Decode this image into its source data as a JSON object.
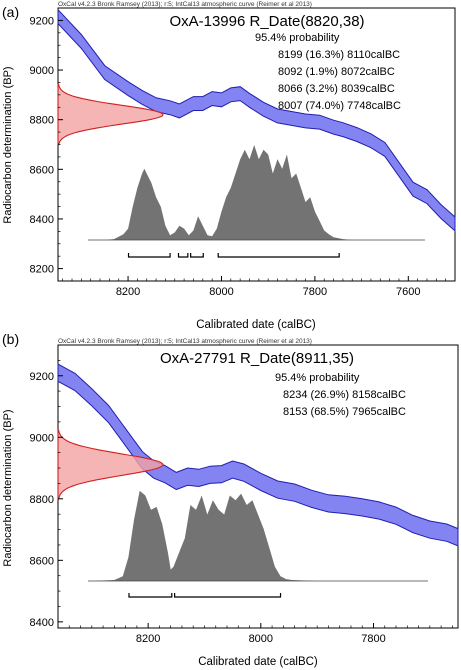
{
  "figure": {
    "panels": [
      {
        "panel_label": "(a)",
        "header": "OxCal v4.2.3 Bronk Ramsey (2013); r:5; IntCal13 atmospheric curve (Reimer et al 2013)",
        "title": "OxA-13996 R_Date(8820,38)",
        "probability_heading": "95.4% probability",
        "ranges": [
          "8199 (16.3%) 8110calBC",
          "8092 (1.9%) 8072calBC",
          "8066 (3.2%) 8039calBC",
          "8007 (74.0%) 7748calBC"
        ]
      },
      {
        "panel_label": "(b)",
        "header": "OxCal v4.2.3 Bronk Ramsey (2013); r:5; IntCal13 atmospheric curve (Reimer et al 2013)",
        "title": "OxA-27791 R_Date(8911,35)",
        "probability_heading": "95.4% probability",
        "ranges": [
          "8234 (26.9%) 8158calBC",
          "8153 (68.5%) 7965calBC"
        ]
      }
    ]
  },
  "colors": {
    "calibration_curve": "#5a5aee",
    "calibration_curve_edge": "#1f1fae",
    "radiocarbon_fill": "#f4a3a3",
    "radiocarbon_edge": "#d22020",
    "calibrated_fill": "#737373",
    "axis": "#000000"
  },
  "chart_data": [
    {
      "type": "area",
      "xlabel": "Calibrated date (calBC)",
      "ylabel": "Radiocarbon determination (BP)",
      "xlim": [
        8350,
        7500
      ],
      "ylim": [
        8150,
        9250
      ],
      "x_ticks": [
        8200,
        8000,
        7800,
        7600
      ],
      "y_ticks": [
        8200,
        8400,
        8600,
        8800,
        9000,
        9200
      ],
      "calibration_curve": {
        "x": [
          8350,
          8300,
          8250,
          8200,
          8170,
          8140,
          8110,
          8090,
          8060,
          8040,
          8020,
          8000,
          7980,
          7960,
          7940,
          7910,
          7880,
          7850,
          7820,
          7790,
          7760,
          7740,
          7710,
          7680,
          7650,
          7620,
          7590,
          7560,
          7530,
          7500
        ],
        "center": [
          9215,
          9115,
          8990,
          8925,
          8890,
          8860,
          8848,
          8835,
          8865,
          8865,
          8885,
          8880,
          8900,
          8905,
          8878,
          8842,
          8815,
          8805,
          8795,
          8790,
          8770,
          8760,
          8740,
          8715,
          8680,
          8600,
          8520,
          8490,
          8430,
          8380
        ],
        "half_width": 28
      },
      "radiocarbon_determination": {
        "mean_bp": 8820,
        "sd": 38
      },
      "calibrated_distribution": {
        "x": [
          8250,
          8230,
          8210,
          8200,
          8190,
          8180,
          8170,
          8165,
          8160,
          8150,
          8140,
          8130,
          8120,
          8110,
          8100,
          8090,
          8080,
          8070,
          8060,
          8050,
          8040,
          8030,
          8020,
          8010,
          8000,
          7990,
          7980,
          7970,
          7960,
          7950,
          7940,
          7930,
          7920,
          7910,
          7900,
          7890,
          7880,
          7870,
          7860,
          7850,
          7840,
          7830,
          7820,
          7810,
          7800,
          7790,
          7780,
          7770,
          7760,
          7750,
          7740,
          7720
        ],
        "density": [
          0,
          0.01,
          0.06,
          0.12,
          0.35,
          0.55,
          0.7,
          0.75,
          0.7,
          0.6,
          0.45,
          0.35,
          0.15,
          0.05,
          0.08,
          0.15,
          0.12,
          0.05,
          0.1,
          0.25,
          0.15,
          0.05,
          0.04,
          0.12,
          0.3,
          0.45,
          0.55,
          0.7,
          0.85,
          0.95,
          0.85,
          1.0,
          0.85,
          0.95,
          0.9,
          0.7,
          0.85,
          0.75,
          0.9,
          0.65,
          0.7,
          0.55,
          0.4,
          0.45,
          0.3,
          0.2,
          0.1,
          0.06,
          0.03,
          0.02,
          0.01,
          0
        ]
      },
      "ranges_95": [
        [
          8199,
          8110
        ],
        [
          8092,
          8072
        ],
        [
          8066,
          8039
        ],
        [
          8007,
          7748
        ]
      ]
    },
    {
      "type": "area",
      "xlabel": "Calibrated date (calBC)",
      "ylabel": "Radiocarbon determination (BP)",
      "xlim": [
        8360,
        7650
      ],
      "ylim": [
        8380,
        9300
      ],
      "x_ticks": [
        8200,
        8000,
        7800
      ],
      "y_ticks": [
        8400,
        8600,
        8800,
        9000,
        9200
      ],
      "calibration_curve": {
        "x": [
          8360,
          8330,
          8300,
          8270,
          8250,
          8230,
          8210,
          8190,
          8170,
          8150,
          8130,
          8110,
          8090,
          8070,
          8050,
          8030,
          8000,
          7970,
          7940,
          7910,
          7880,
          7850,
          7820,
          7790,
          7760,
          7730,
          7700,
          7670,
          7650
        ],
        "center": [
          9210,
          9180,
          9130,
          9075,
          9025,
          8975,
          8925,
          8895,
          8880,
          8858,
          8872,
          8868,
          8878,
          8880,
          8895,
          8885,
          8855,
          8830,
          8820,
          8800,
          8785,
          8780,
          8772,
          8762,
          8745,
          8718,
          8700,
          8690,
          8675
        ],
        "half_width": 28
      },
      "radiocarbon_determination": {
        "mean_bp": 8911,
        "sd": 35
      },
      "calibrated_distribution": {
        "x": [
          8300,
          8260,
          8245,
          8235,
          8225,
          8215,
          8205,
          8195,
          8185,
          8175,
          8165,
          8160,
          8155,
          8145,
          8135,
          8125,
          8115,
          8105,
          8095,
          8085,
          8075,
          8065,
          8055,
          8045,
          8035,
          8025,
          8015,
          8005,
          7995,
          7985,
          7975,
          7965,
          7955,
          7945,
          7900
        ],
        "density": [
          0,
          0.01,
          0.05,
          0.25,
          0.65,
          0.95,
          0.9,
          0.75,
          0.78,
          0.6,
          0.3,
          0.12,
          0.15,
          0.3,
          0.45,
          0.8,
          0.75,
          0.9,
          0.7,
          0.85,
          0.75,
          0.7,
          0.9,
          0.85,
          0.92,
          0.8,
          0.85,
          0.7,
          0.55,
          0.35,
          0.15,
          0.05,
          0.02,
          0.01,
          0
        ]
      },
      "ranges_95": [
        [
          8234,
          8158
        ],
        [
          8153,
          7965
        ]
      ]
    }
  ]
}
